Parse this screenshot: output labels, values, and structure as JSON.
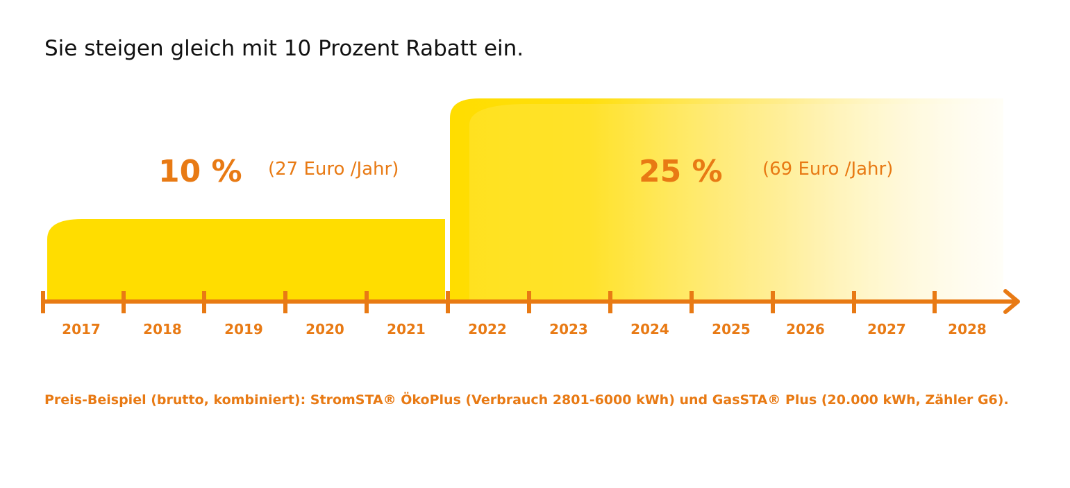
{
  "headline": "Sie steigen gleich mit 10 Prozent Rabatt ein.",
  "colors": {
    "accent": "#e87a14",
    "yellow": "#ffdd00",
    "text": "#111111"
  },
  "phases": [
    {
      "percent": "10 %",
      "amount": "(27 Euro /Jahr)",
      "from_year": 2017,
      "to_year": 2021
    },
    {
      "percent": "25 %",
      "amount": "(69 Euro /Jahr)",
      "from_year": 2022,
      "to_year": 2028
    }
  ],
  "timeline": {
    "years": [
      "2017",
      "2018",
      "2019",
      "2020",
      "2021",
      "2022",
      "2023",
      "2024",
      "2025",
      "2026",
      "2027",
      "2028"
    ]
  },
  "footnote": "Preis-Beispiel (brutto, kombiniert): StromSTA® ÖkoPlus (Verbrauch 2801-6000 kWh) und GasSTA® Plus (20.000 kWh, Zähler G6)."
}
